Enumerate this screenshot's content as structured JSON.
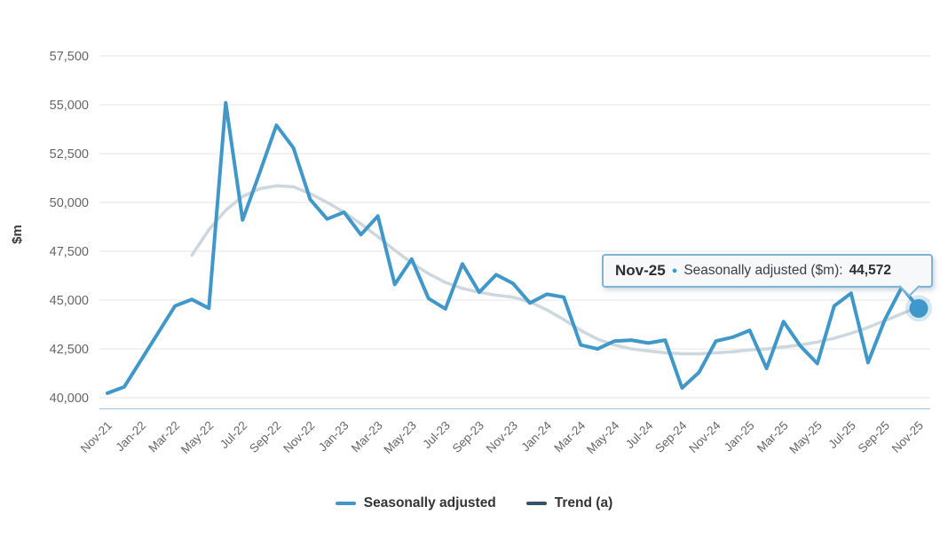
{
  "chart": {
    "y_axis_title": "$m",
    "tooltip": {
      "period": "Nov-25",
      "bullet_icon": "●",
      "series_label": "Seasonally adjusted ($m):",
      "value": "44,572"
    },
    "legend": [
      {
        "label": "Seasonally adjusted",
        "color": "#4097c9"
      },
      {
        "label": "Trend (a)",
        "color": "#33536b"
      }
    ],
    "colors": {
      "seasonally_adjusted_line": "#4097c9",
      "trend_legend": "#33536b",
      "trend_rendered": "#cdd7de",
      "gridline": "#e6e6e6",
      "axis_line": "#9dc3dc",
      "tick_label": "#666666",
      "tooltip_border": "#7db3d6",
      "tooltip_background": "#f7f8f9",
      "highlight_dot": "#4097c9"
    }
  },
  "chart_data": {
    "type": "line",
    "title": "",
    "xlabel": "",
    "ylabel": "$m",
    "grid": true,
    "legend_position": "bottom",
    "ylim": [
      40000,
      57500
    ],
    "y_ticks": [
      40000,
      42500,
      45000,
      47500,
      50000,
      52500,
      55000,
      57500
    ],
    "x_tick_labels": [
      "Nov-21",
      "Jan-22",
      "Mar-22",
      "May-22",
      "Jul-22",
      "Sep-22",
      "Nov-22",
      "Jan-23",
      "Mar-23",
      "May-23",
      "Jul-23",
      "Sep-23",
      "Nov-23",
      "Jan-24",
      "Mar-24",
      "May-24",
      "Jul-24",
      "Sep-24",
      "Nov-24",
      "Jan-25",
      "Mar-25",
      "May-25",
      "Jul-25",
      "Sep-25",
      "Nov-25"
    ],
    "x": [
      "Nov-21",
      "Dec-21",
      "Jan-22",
      "Feb-22",
      "Mar-22",
      "Apr-22",
      "May-22",
      "Jun-22",
      "Jul-22",
      "Aug-22",
      "Sep-22",
      "Oct-22",
      "Nov-22",
      "Dec-22",
      "Jan-23",
      "Feb-23",
      "Mar-23",
      "Apr-23",
      "May-23",
      "Jun-23",
      "Jul-23",
      "Aug-23",
      "Sep-23",
      "Oct-23",
      "Nov-23",
      "Dec-23",
      "Jan-24",
      "Feb-24",
      "Mar-24",
      "Apr-24",
      "May-24",
      "Jun-24",
      "Jul-24",
      "Aug-24",
      "Sep-24",
      "Oct-24",
      "Nov-24",
      "Dec-24",
      "Jan-25",
      "Feb-25",
      "Mar-25",
      "Apr-25",
      "May-25",
      "Jun-25",
      "Jul-25",
      "Aug-25",
      "Sep-25",
      "Oct-25",
      "Nov-25"
    ],
    "series": [
      {
        "name": "Seasonally adjusted",
        "color": "#4097c9",
        "values": [
          40230,
          40560,
          41940,
          43320,
          44700,
          45030,
          44580,
          55100,
          49100,
          51500,
          53950,
          52800,
          50150,
          49150,
          49500,
          48350,
          49300,
          45800,
          47100,
          45080,
          44550,
          46850,
          45400,
          46300,
          45850,
          44850,
          45300,
          45150,
          42700,
          42500,
          42900,
          42950,
          42800,
          42950,
          40500,
          41300,
          42900,
          43100,
          43450,
          41500,
          43900,
          42650,
          41750,
          44700,
          45350,
          41800,
          44000,
          45670,
          44572
        ]
      },
      {
        "name": "Trend (a)",
        "color": "#33536b",
        "rendered_color": "#cdd7de",
        "values": [
          null,
          null,
          null,
          null,
          null,
          47300,
          48600,
          49600,
          50300,
          50700,
          50850,
          50800,
          50450,
          50000,
          49500,
          48900,
          48250,
          47550,
          46900,
          46350,
          45900,
          45600,
          45400,
          45250,
          45150,
          44900,
          44500,
          44000,
          43450,
          43000,
          42700,
          42500,
          42400,
          42300,
          42250,
          42250,
          42300,
          42350,
          42450,
          42500,
          42600,
          42700,
          42850,
          43050,
          43300,
          43600,
          43950,
          44300,
          44650
        ]
      }
    ],
    "highlight": {
      "x": "Nov-25",
      "series": "Seasonally adjusted",
      "value": 44572
    }
  }
}
